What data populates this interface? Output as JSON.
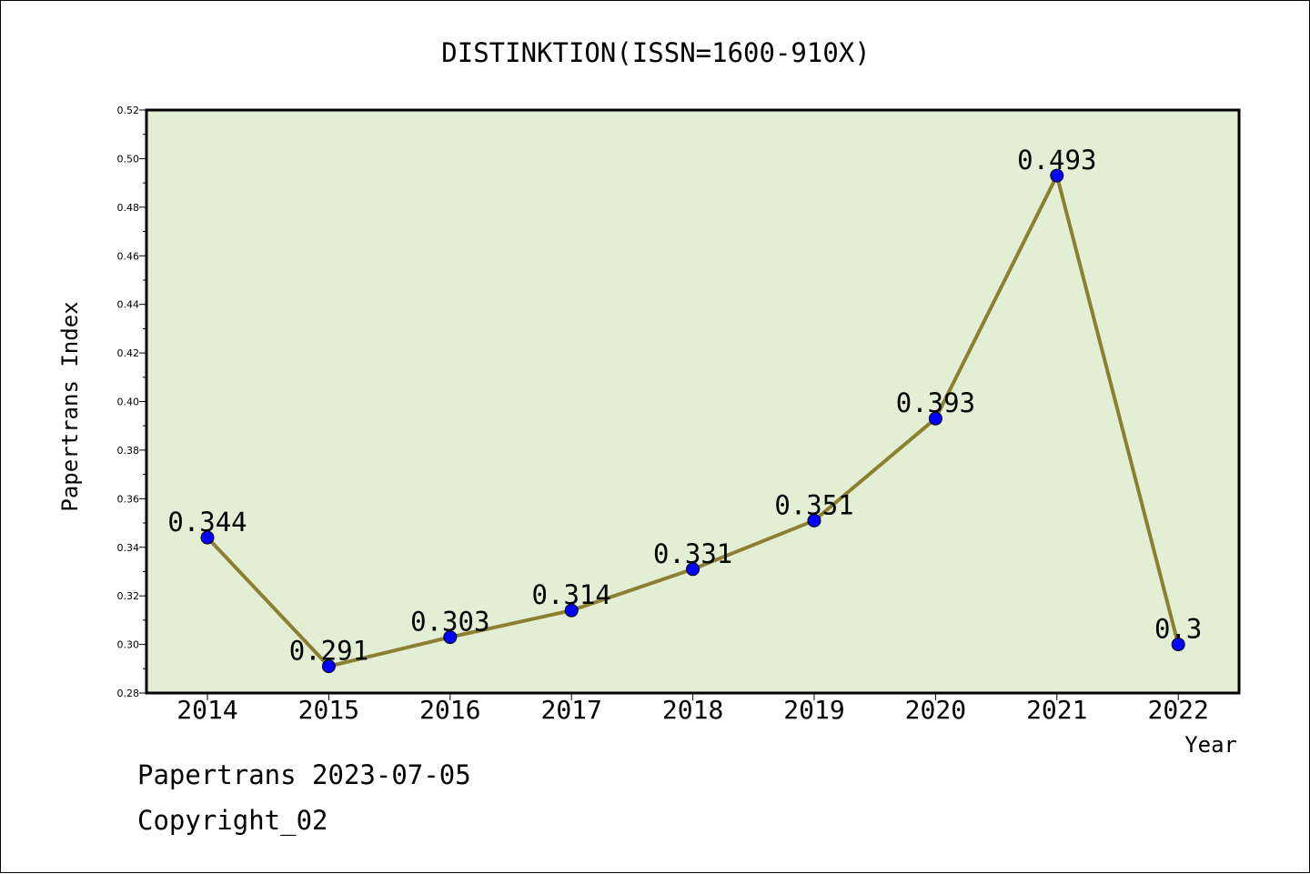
{
  "chart_data": {
    "type": "line",
    "title": "DISTINKTION(ISSN=1600-910X)",
    "xlabel": "Year",
    "ylabel": "Papertrans Index",
    "categories": [
      "2014",
      "2015",
      "2016",
      "2017",
      "2018",
      "2019",
      "2020",
      "2021",
      "2022"
    ],
    "series": [
      {
        "values": [
          0.344,
          0.291,
          0.303,
          0.314,
          0.331,
          0.351,
          0.393,
          0.493,
          0.3
        ],
        "labels": [
          "0.344",
          "0.291",
          "0.303",
          "0.314",
          "0.331",
          "0.351",
          "0.393",
          "0.493",
          "0.3"
        ]
      }
    ],
    "ylim": [
      0.28,
      0.52
    ],
    "yticks": [
      "0.28",
      "0.30",
      "0.32",
      "0.34",
      "0.36",
      "0.38",
      "0.40",
      "0.42",
      "0.44",
      "0.46",
      "0.48",
      "0.50",
      "0.52"
    ],
    "grid": false,
    "colors": {
      "plot_background": "#e2efd5",
      "line": "#8b8031",
      "marker": "#0000ff"
    }
  },
  "footer": {
    "line1": "Papertrans 2023-07-05",
    "line2": "Copyright_02"
  }
}
